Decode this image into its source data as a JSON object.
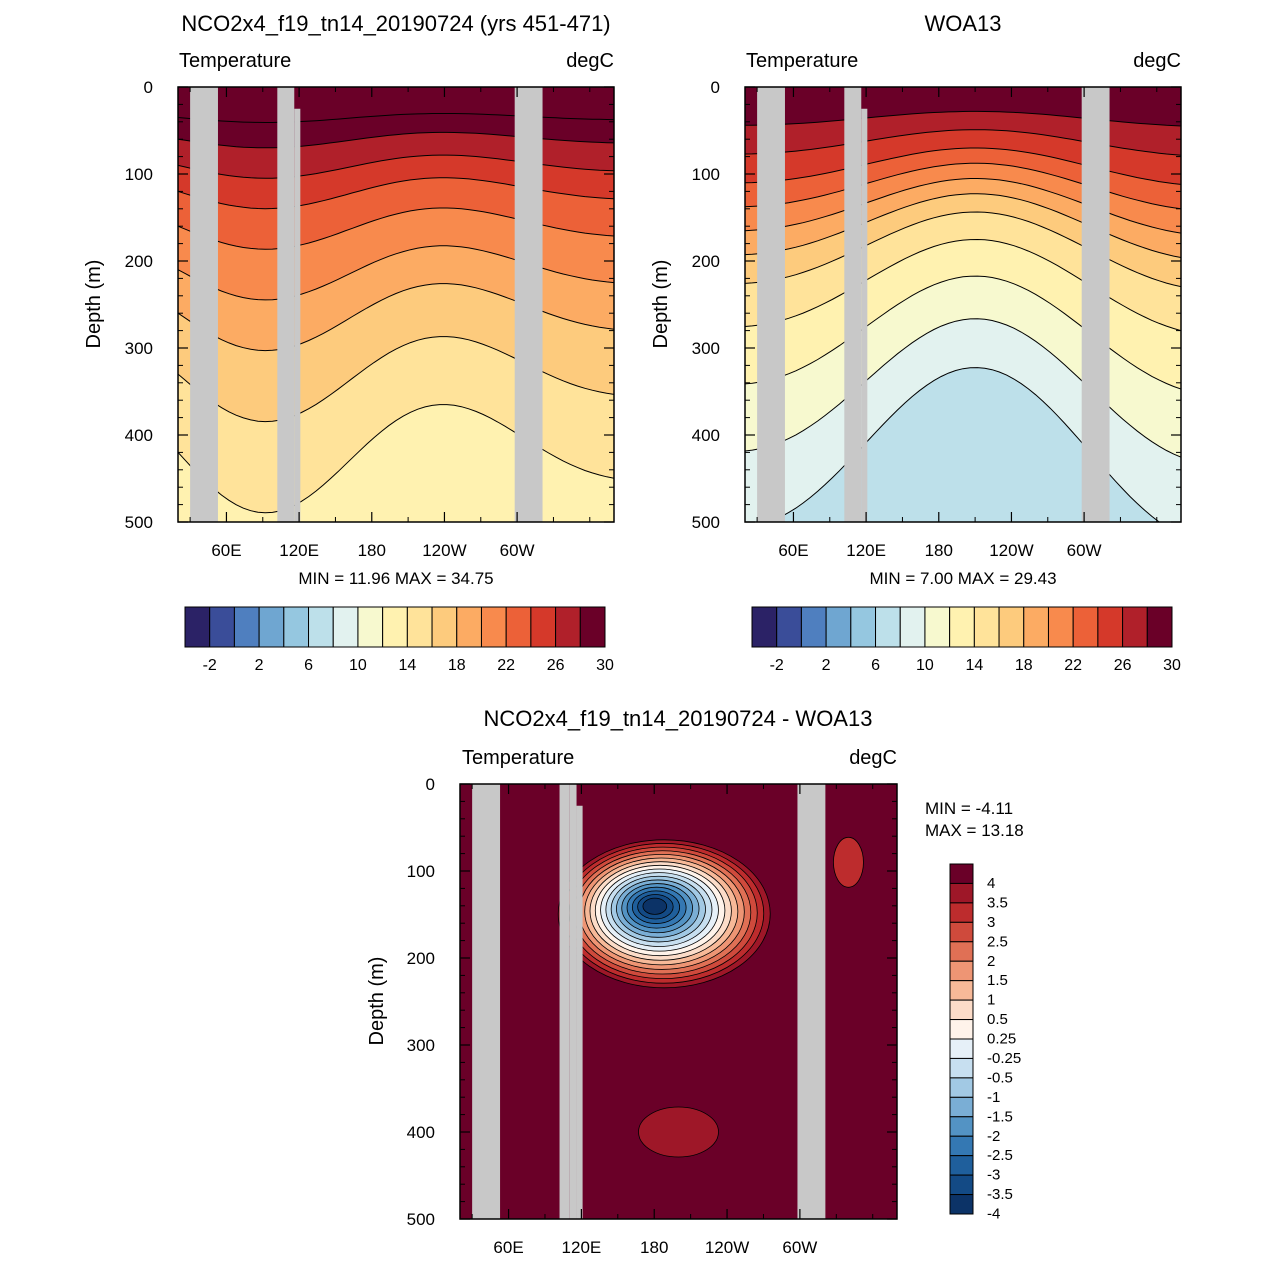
{
  "panels": [
    {
      "id": "model",
      "title": "NCO2x4_f19_tn14_20190724 (yrs 451-471)",
      "left_label": "Temperature",
      "right_label": "degC",
      "ylabel": "Depth (m)",
      "stats": "MIN =  11.96  MAX =  34.75"
    },
    {
      "id": "obs",
      "title": "WOA13",
      "left_label": "Temperature",
      "right_label": "degC",
      "ylabel": "Depth (m)",
      "stats": "MIN =   7.00  MAX =  29.43"
    },
    {
      "id": "diff",
      "title": "NCO2x4_f19_tn14_20190724 - WOA13",
      "left_label": "Temperature",
      "right_label": "degC",
      "ylabel": "Depth (m)",
      "stats_min": "MIN =  -4.11",
      "stats_max": "MAX =  13.18"
    }
  ],
  "chart_data": [
    {
      "type": "heatmap",
      "title": "NCO2x4_f19_tn14_20190724 (yrs 451-471)",
      "ylabel": "Depth (m)",
      "xlabel": "",
      "x_ticks": [
        "60E",
        "120E",
        "180",
        "120W",
        "60W"
      ],
      "y_ticks": [
        "0",
        "100",
        "200",
        "300",
        "400",
        "500"
      ],
      "ylim": [
        0,
        500
      ],
      "contour_depths_approx": [
        {
          "level": 30,
          "depth": 35
        },
        {
          "level": 28,
          "depth": 60
        },
        {
          "level": 26,
          "depth": 90
        },
        {
          "level": 24,
          "depth": 120
        },
        {
          "level": 22,
          "depth": 160
        },
        {
          "level": 20,
          "depth": 210
        },
        {
          "level": 18,
          "depth": 260
        },
        {
          "level": 16,
          "depth": 330
        },
        {
          "level": 14,
          "depth": 420
        }
      ],
      "min": 11.96,
      "max": 34.75,
      "colorbar_labels": [
        "-2",
        "2",
        "6",
        "10",
        "14",
        "18",
        "22",
        "26",
        "30"
      ]
    },
    {
      "type": "heatmap",
      "title": "WOA13",
      "ylabel": "Depth (m)",
      "xlabel": "",
      "x_ticks": [
        "60E",
        "120E",
        "180",
        "120W",
        "60W"
      ],
      "y_ticks": [
        "0",
        "100",
        "200",
        "300",
        "400",
        "500"
      ],
      "ylim": [
        0,
        500
      ],
      "contour_depths_approx": [
        {
          "level": 28,
          "depth": 40
        },
        {
          "level": 26,
          "depth": 70
        },
        {
          "level": 24,
          "depth": 100
        },
        {
          "level": 22,
          "depth": 125
        },
        {
          "level": 20,
          "depth": 150
        },
        {
          "level": 18,
          "depth": 175
        },
        {
          "level": 16,
          "depth": 205
        },
        {
          "level": 14,
          "depth": 250
        },
        {
          "level": 12,
          "depth": 310
        },
        {
          "level": 10,
          "depth": 380
        },
        {
          "level": 8,
          "depth": 460
        }
      ],
      "min": 7.0,
      "max": 29.43,
      "colorbar_labels": [
        "-2",
        "2",
        "6",
        "10",
        "14",
        "18",
        "22",
        "26",
        "30"
      ]
    },
    {
      "type": "heatmap",
      "title": "NCO2x4_f19_tn14_20190724 - WOA13",
      "ylabel": "Depth (m)",
      "xlabel": "",
      "x_ticks": [
        "60E",
        "120E",
        "180",
        "120W",
        "60W"
      ],
      "y_ticks": [
        "0",
        "100",
        "200",
        "300",
        "400",
        "500"
      ],
      "ylim": [
        0,
        500
      ],
      "min": -4.11,
      "max": 13.18,
      "colorbar_labels": [
        "4",
        "3.5",
        "3",
        "2.5",
        "2",
        "1.5",
        "1",
        "0.5",
        "0.25",
        "-0.25",
        "-0.5",
        "-1",
        "-1.5",
        "-2",
        "-2.5",
        "-3",
        "-3.5",
        "-4"
      ],
      "negative_core": {
        "lon_label": "180",
        "depth_center": 140,
        "min_value": -4.11
      }
    }
  ],
  "colors": {
    "land": "#c8c8c8",
    "temp_scale": [
      "#2b2266",
      "#3a4d99",
      "#4f7fbf",
      "#6fa6d1",
      "#95c7e0",
      "#bde0ea",
      "#e2f2ef",
      "#f7f9cf",
      "#fff2b0",
      "#ffe39a",
      "#fdcb7d",
      "#fcab63",
      "#f88a4d",
      "#ec6138",
      "#d5392a",
      "#b0202a",
      "#6a0028"
    ],
    "diff_scale": [
      "#6a0028",
      "#9e1728",
      "#bd2c2d",
      "#cf4a3c",
      "#e07055",
      "#ee9574",
      "#f7b998",
      "#fcdcc8",
      "#fff3ea",
      "#e6f0f8",
      "#c7dff0",
      "#a2c9e4",
      "#7aaed5",
      "#5393c4",
      "#3478b3",
      "#1f5f9c",
      "#134a85",
      "#0c3367"
    ]
  }
}
